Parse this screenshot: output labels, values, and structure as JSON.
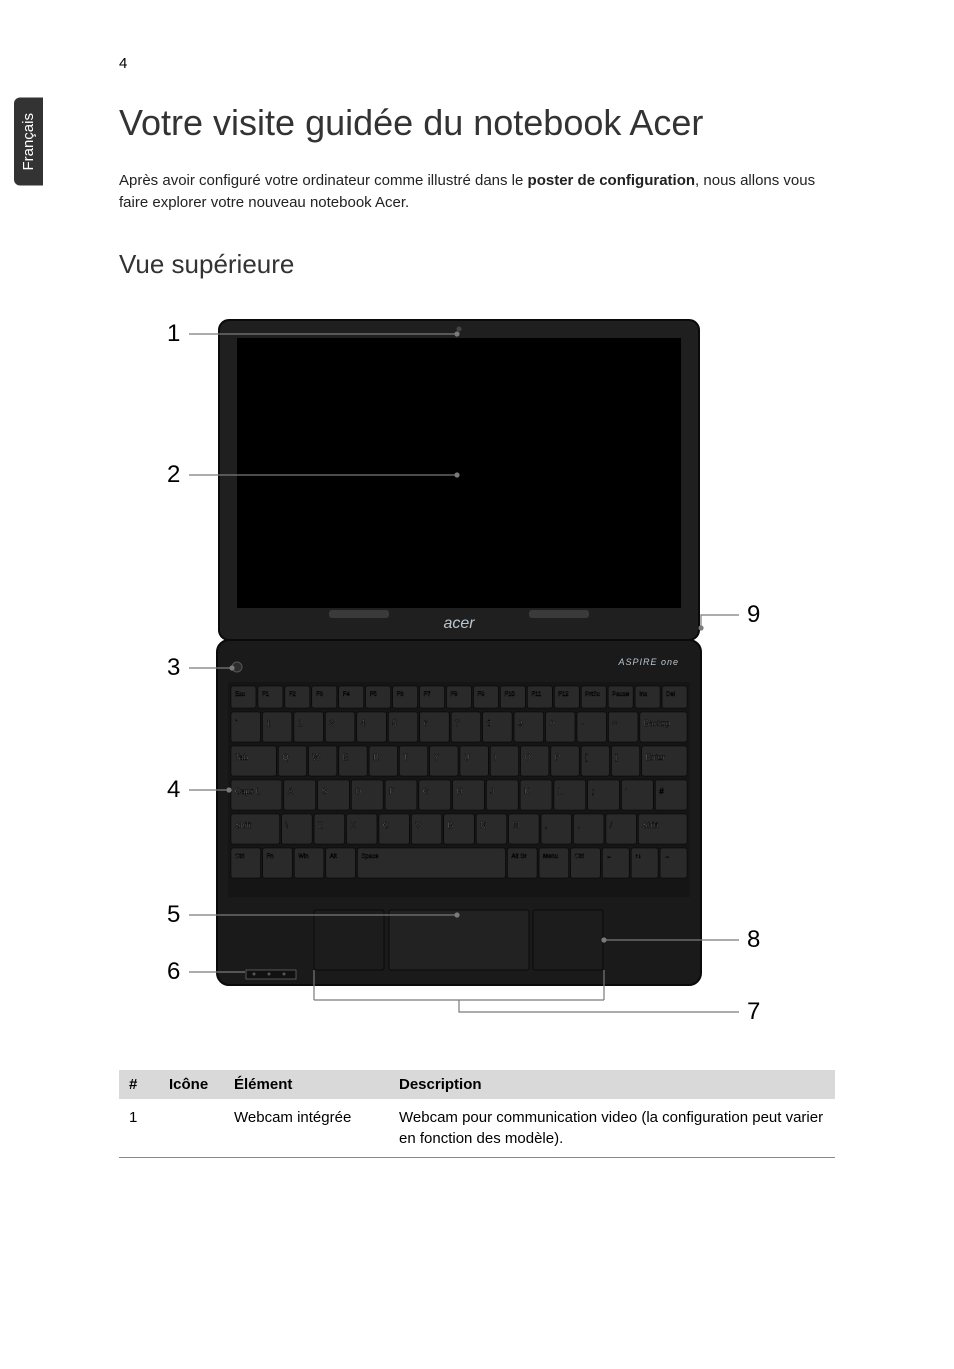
{
  "page_number": "4",
  "side_tab": "Français",
  "h1_title": "Votre visite guidée du notebook Acer",
  "intro": {
    "before_bold": "Après avoir configuré votre ordinateur comme illustré dans le ",
    "bold": "poster de configuration",
    "after_bold": ", nous allons vous faire explorer votre nouveau notebook Acer."
  },
  "h2_title": "Vue supérieure",
  "diagram": {
    "labels": {
      "l1": "1",
      "l2": "2",
      "l3": "3",
      "l4": "4",
      "l5": "5",
      "l6": "6",
      "r7": "7",
      "r8": "8",
      "r9": "9"
    },
    "brand_text": "acer",
    "model_text": "ASPIRE one",
    "colors": {
      "body": "#1a1a1a",
      "screen_black": "#000000",
      "bezel": "#1f1f1f",
      "key": "#2a2a2a",
      "key_text": "#dddddd",
      "line": "#7a7a7a",
      "logo": "#b9c5d0"
    },
    "keyboard": {
      "row1": [
        "Esc",
        "F1",
        "F2",
        "F3",
        "F4",
        "F5",
        "F6",
        "F7",
        "F8",
        "F9",
        "F10",
        "F11",
        "F12",
        "PrtSc",
        "Pause",
        "Ins",
        "Del"
      ],
      "row2": [
        "`",
        "1",
        "2",
        "3",
        "4",
        "5",
        "6",
        "7",
        "8",
        "9",
        "0",
        "-",
        "=",
        "Backspace"
      ],
      "row3": [
        "Tab",
        "Q",
        "W",
        "E",
        "R",
        "T",
        "Y",
        "U",
        "I",
        "O",
        "P",
        "[",
        "]",
        "Enter"
      ],
      "row4": [
        "Caps Lock",
        "A",
        "S",
        "D",
        "F",
        "G",
        "H",
        "J",
        "K",
        "L",
        ";",
        "'",
        "#"
      ],
      "row5": [
        "Shift",
        "\\",
        "Z",
        "X",
        "C",
        "V",
        "B",
        "N",
        "M",
        ",",
        ".",
        "/",
        "Shift"
      ],
      "row6": [
        "Ctrl",
        "Fn",
        "Win",
        "Alt",
        "Space",
        "Alt Gr",
        "Menu",
        "Ctrl",
        "←",
        "↑↓",
        "→"
      ]
    }
  },
  "table": {
    "headers": {
      "num": "#",
      "icon": "Icône",
      "element": "Élément",
      "description": "Description"
    },
    "rows": [
      {
        "num": "1",
        "icon": "",
        "element": "Webcam intégrée",
        "description": "Webcam pour communication video (la configuration peut varier en fonction des modèle)."
      }
    ]
  }
}
